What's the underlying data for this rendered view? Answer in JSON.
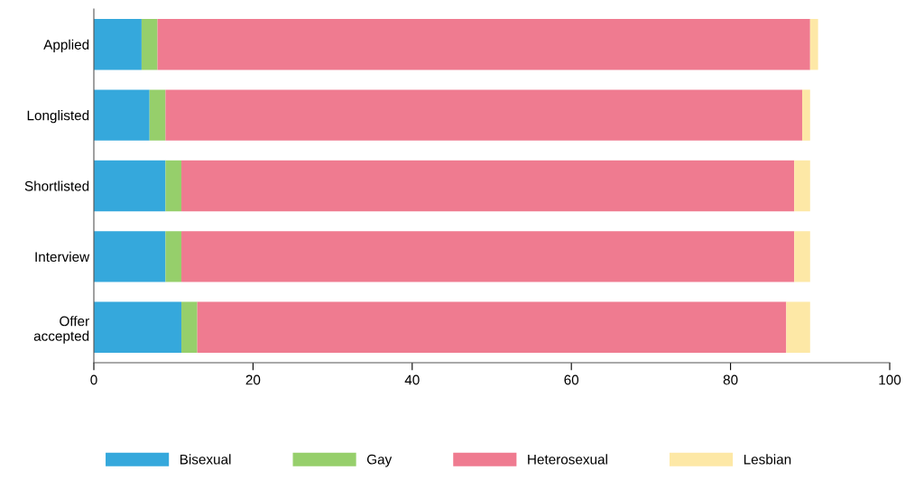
{
  "chart_data": {
    "type": "bar",
    "orientation": "horizontal",
    "stacked": true,
    "categories": [
      "Applied",
      "Longlisted",
      "Shortlisted",
      "Interview",
      "Offer accepted"
    ],
    "series": [
      {
        "name": "Bisexual",
        "color": "#35a8dc",
        "values": [
          6,
          7,
          9,
          9,
          11
        ]
      },
      {
        "name": "Gay",
        "color": "#96cf6b",
        "values": [
          2,
          2,
          2,
          2,
          2
        ]
      },
      {
        "name": "Heterosexual",
        "color": "#ef7b90",
        "values": [
          82,
          80,
          77,
          77,
          74
        ]
      },
      {
        "name": "Lesbian",
        "color": "#fde8a6",
        "values": [
          1,
          1,
          2,
          2,
          3
        ]
      }
    ],
    "xlim": [
      0,
      100
    ],
    "xticks": [
      0,
      20,
      40,
      60,
      80,
      100
    ],
    "grid": false,
    "legend": "bottom"
  }
}
